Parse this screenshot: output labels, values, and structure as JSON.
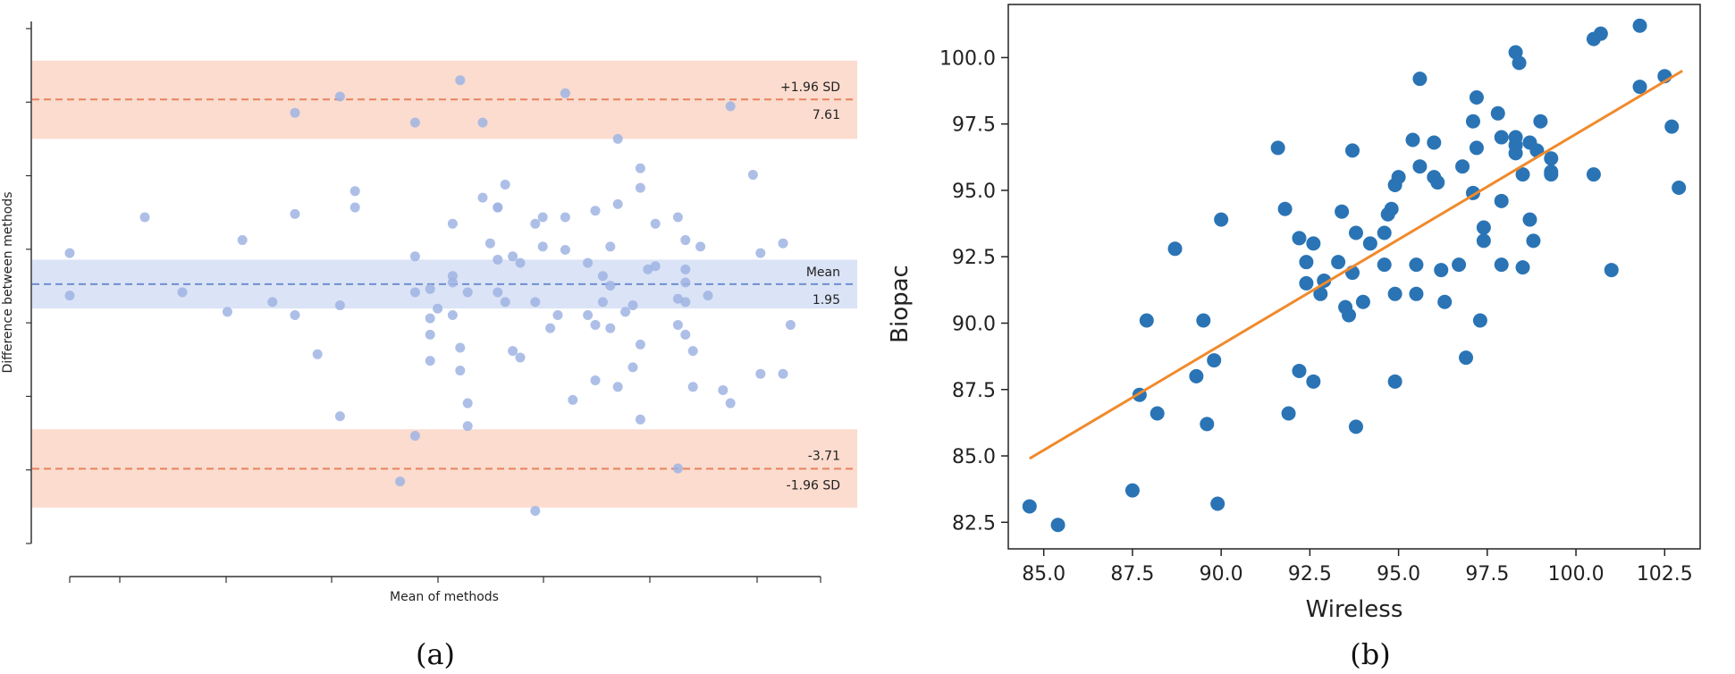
{
  "chart_data": [
    {
      "type": "scatter",
      "caption": "(a)",
      "xlabel": "Mean of methods",
      "ylabel": "Difference between methods",
      "xlim": [
        0,
        100
      ],
      "ylim": [
        -6.0,
        10.0
      ],
      "grid": false,
      "reference_lines": [
        {
          "label": "+1.96 SD",
          "value_label": "7.61",
          "value": 7.61,
          "color": "#e8825e",
          "band": [
            6.4,
            8.8
          ],
          "band_color": "#fbdccf"
        },
        {
          "label": "Mean",
          "value_label": "1.95",
          "value": 1.95,
          "color": "#6f8fd0",
          "band": [
            1.2,
            2.7
          ],
          "band_color": "#dbe3f6"
        },
        {
          "label": "-1.96 SD",
          "value_label": "-3.71",
          "value": -3.71,
          "color": "#e8825e",
          "band": [
            -4.9,
            -2.5
          ],
          "band_color": "#fbdccf"
        }
      ],
      "point_color": "#9fb4e3",
      "points": [
        [
          0,
          2.9
        ],
        [
          0,
          1.6
        ],
        [
          10,
          4.0
        ],
        [
          15,
          1.7
        ],
        [
          21,
          1.1
        ],
        [
          23,
          3.3
        ],
        [
          27,
          1.4
        ],
        [
          30,
          7.2
        ],
        [
          30,
          1.0
        ],
        [
          30,
          4.1
        ],
        [
          33,
          -0.2
        ],
        [
          36,
          7.7
        ],
        [
          36,
          -2.1
        ],
        [
          36,
          1.3
        ],
        [
          38,
          4.8
        ],
        [
          38,
          4.3
        ],
        [
          44,
          -4.1
        ],
        [
          46,
          6.9
        ],
        [
          46,
          1.7
        ],
        [
          46,
          2.8
        ],
        [
          46,
          -2.7
        ],
        [
          48,
          1.8
        ],
        [
          48,
          -0.4
        ],
        [
          48,
          0.4
        ],
        [
          48,
          0.9
        ],
        [
          49,
          1.2
        ],
        [
          51,
          1.0
        ],
        [
          51,
          3.8
        ],
        [
          52,
          0.0
        ],
        [
          51,
          2.2
        ],
        [
          52,
          8.2
        ],
        [
          52,
          -0.7
        ],
        [
          53,
          -1.7
        ],
        [
          51,
          2.0
        ],
        [
          53,
          -2.4
        ],
        [
          53,
          1.7
        ],
        [
          55,
          4.6
        ],
        [
          55,
          6.9
        ],
        [
          56,
          3.2
        ],
        [
          57,
          4.3
        ],
        [
          57,
          2.7
        ],
        [
          57,
          1.7
        ],
        [
          57,
          4.3
        ],
        [
          58,
          5.0
        ],
        [
          58,
          1.4
        ],
        [
          59,
          2.8
        ],
        [
          59,
          -0.1
        ],
        [
          60,
          2.6
        ],
        [
          60,
          -0.3
        ],
        [
          62,
          -5.0
        ],
        [
          62,
          3.8
        ],
        [
          62,
          1.4
        ],
        [
          63,
          4.0
        ],
        [
          63,
          3.1
        ],
        [
          64,
          0.6
        ],
        [
          65,
          1.0
        ],
        [
          66,
          4.0
        ],
        [
          66,
          7.8
        ],
        [
          66,
          3.0
        ],
        [
          67,
          -1.6
        ],
        [
          69,
          2.6
        ],
        [
          69,
          1.0
        ],
        [
          70,
          4.2
        ],
        [
          70,
          0.7
        ],
        [
          70,
          -1.0
        ],
        [
          71,
          1.4
        ],
        [
          71,
          2.2
        ],
        [
          72,
          1.9
        ],
        [
          72,
          0.6
        ],
        [
          73,
          -1.2
        ],
        [
          72,
          3.1
        ],
        [
          73,
          6.4
        ],
        [
          73,
          4.4
        ],
        [
          74,
          1.1
        ],
        [
          75,
          -0.6
        ],
        [
          75,
          1.3
        ],
        [
          76,
          5.5
        ],
        [
          76,
          0.1
        ],
        [
          76,
          -2.2
        ],
        [
          76,
          4.9
        ],
        [
          77,
          2.4
        ],
        [
          78,
          3.8
        ],
        [
          78,
          2.5
        ],
        [
          81,
          1.5
        ],
        [
          81,
          -3.7
        ],
        [
          81,
          0.7
        ],
        [
          81,
          4.0
        ],
        [
          82,
          2.4
        ],
        [
          82,
          3.3
        ],
        [
          82,
          1.4
        ],
        [
          82,
          2.0
        ],
        [
          82,
          0.4
        ],
        [
          83,
          -0.1
        ],
        [
          83,
          -1.2
        ],
        [
          84,
          3.1
        ],
        [
          85,
          1.6
        ],
        [
          87,
          -1.3
        ],
        [
          88,
          7.4
        ],
        [
          88,
          -1.7
        ],
        [
          91,
          5.3
        ],
        [
          92,
          -0.8
        ],
        [
          92,
          2.9
        ],
        [
          95,
          -0.8
        ],
        [
          95,
          3.2
        ],
        [
          96,
          0.7
        ]
      ]
    },
    {
      "type": "scatter",
      "caption": "(b)",
      "xlabel": "Wireless",
      "ylabel": "Biopac",
      "xlim": [
        84.0,
        103.5
      ],
      "ylim": [
        81.5,
        102.0
      ],
      "xticks": [
        "85.0",
        "87.5",
        "90.0",
        "92.5",
        "95.0",
        "97.5",
        "100.0",
        "102.5"
      ],
      "yticks": [
        "82.5",
        "85.0",
        "87.5",
        "90.0",
        "92.5",
        "95.0",
        "97.5",
        "100.0"
      ],
      "grid": false,
      "point_color": "#2a74b5",
      "fit_line": {
        "x": [
          84.6,
          103.0
        ],
        "y": [
          84.9,
          99.5
        ],
        "color": "#f08a2c"
      },
      "points": [
        [
          84.6,
          83.1
        ],
        [
          85.4,
          82.4
        ],
        [
          87.5,
          83.7
        ],
        [
          87.7,
          87.3
        ],
        [
          87.9,
          90.1
        ],
        [
          88.2,
          86.6
        ],
        [
          88.7,
          92.8
        ],
        [
          89.3,
          88.0
        ],
        [
          89.5,
          90.1
        ],
        [
          89.6,
          86.2
        ],
        [
          89.8,
          88.6
        ],
        [
          89.9,
          83.2
        ],
        [
          90.0,
          93.9
        ],
        [
          91.6,
          96.6
        ],
        [
          91.8,
          94.3
        ],
        [
          91.9,
          86.6
        ],
        [
          92.2,
          88.2
        ],
        [
          92.2,
          93.2
        ],
        [
          92.4,
          92.3
        ],
        [
          92.4,
          91.5
        ],
        [
          92.6,
          87.8
        ],
        [
          92.6,
          93.0
        ],
        [
          92.8,
          91.1
        ],
        [
          92.9,
          91.6
        ],
        [
          93.3,
          92.3
        ],
        [
          93.4,
          94.2
        ],
        [
          93.5,
          90.6
        ],
        [
          93.6,
          90.3
        ],
        [
          93.7,
          96.5
        ],
        [
          93.7,
          91.9
        ],
        [
          93.8,
          93.4
        ],
        [
          93.8,
          86.1
        ],
        [
          94.0,
          90.8
        ],
        [
          94.2,
          93.0
        ],
        [
          94.6,
          93.4
        ],
        [
          94.6,
          92.2
        ],
        [
          94.7,
          94.1
        ],
        [
          94.8,
          94.3
        ],
        [
          94.9,
          95.2
        ],
        [
          94.9,
          91.1
        ],
        [
          94.9,
          87.8
        ],
        [
          95.0,
          95.5
        ],
        [
          95.4,
          96.9
        ],
        [
          95.5,
          92.2
        ],
        [
          95.5,
          91.1
        ],
        [
          95.6,
          95.9
        ],
        [
          95.6,
          99.2
        ],
        [
          96.0,
          96.8
        ],
        [
          96.0,
          95.5
        ],
        [
          96.1,
          95.3
        ],
        [
          96.2,
          92.0
        ],
        [
          96.3,
          90.8
        ],
        [
          96.7,
          92.2
        ],
        [
          96.8,
          95.9
        ],
        [
          96.9,
          88.7
        ],
        [
          97.1,
          97.6
        ],
        [
          97.1,
          94.9
        ],
        [
          97.2,
          98.5
        ],
        [
          97.2,
          96.6
        ],
        [
          97.3,
          90.1
        ],
        [
          97.4,
          93.6
        ],
        [
          97.4,
          93.1
        ],
        [
          97.8,
          97.9
        ],
        [
          97.9,
          97.0
        ],
        [
          97.9,
          94.6
        ],
        [
          97.9,
          92.2
        ],
        [
          98.3,
          100.2
        ],
        [
          98.3,
          97.0
        ],
        [
          98.3,
          96.7
        ],
        [
          98.3,
          96.4
        ],
        [
          98.4,
          99.8
        ],
        [
          98.5,
          95.6
        ],
        [
          98.5,
          92.1
        ],
        [
          98.7,
          96.8
        ],
        [
          98.7,
          93.9
        ],
        [
          98.8,
          93.1
        ],
        [
          98.9,
          96.5
        ],
        [
          99.0,
          97.6
        ],
        [
          99.3,
          96.2
        ],
        [
          99.3,
          95.7
        ],
        [
          99.3,
          95.6
        ],
        [
          100.5,
          95.6
        ],
        [
          100.5,
          100.7
        ],
        [
          100.7,
          100.9
        ],
        [
          101.0,
          92.0
        ],
        [
          101.8,
          101.2
        ],
        [
          101.8,
          98.9
        ],
        [
          102.5,
          99.3
        ],
        [
          102.7,
          97.4
        ],
        [
          102.9,
          95.1
        ]
      ]
    }
  ]
}
